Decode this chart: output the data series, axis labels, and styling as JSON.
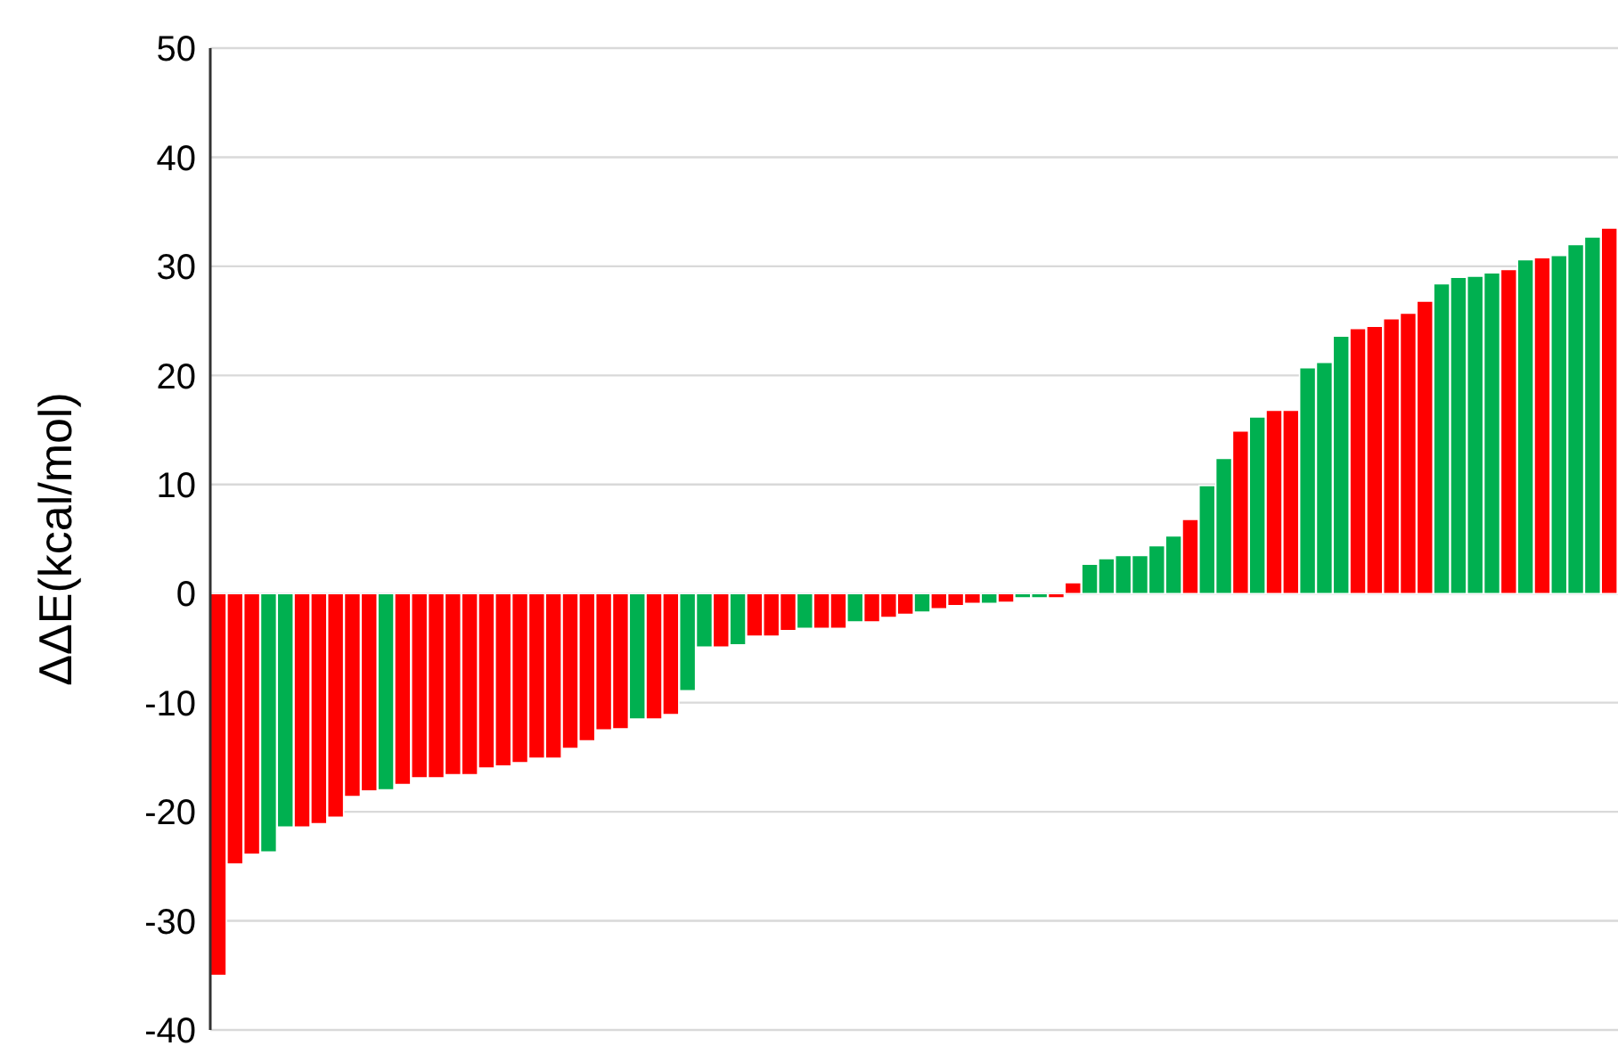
{
  "chart_data": {
    "type": "bar",
    "ylabel": "ΔΔE(kcal/mol)",
    "categories": [
      null,
      null,
      null,
      null,
      null,
      null,
      null,
      null,
      null,
      null,
      null,
      null,
      null,
      null,
      null,
      null,
      null,
      null,
      null,
      null,
      null,
      null,
      null,
      null,
      null,
      null,
      null,
      null,
      null,
      null,
      null,
      null,
      null,
      null,
      null,
      null,
      null,
      null,
      null,
      null,
      null,
      null,
      null,
      null,
      null,
      null,
      null,
      null,
      null,
      null,
      null,
      null,
      null,
      null,
      null,
      null,
      null,
      null,
      null,
      null,
      null,
      null,
      null,
      null,
      null,
      null,
      null,
      null,
      null,
      null,
      null,
      null,
      null,
      null,
      null,
      null,
      null,
      null,
      null,
      null,
      null,
      null,
      null,
      null
    ],
    "values": [
      -35,
      -24.8,
      -23.9,
      -23.7,
      -21.4,
      -21.4,
      -21.1,
      -20.5,
      -18.6,
      -18.1,
      -18.0,
      -17.5,
      -16.9,
      -16.9,
      -16.6,
      -16.6,
      -16.0,
      -15.8,
      -15.5,
      -15.1,
      -15.1,
      -14.2,
      -13.5,
      -12.5,
      -12.4,
      -11.5,
      -11.5,
      -11.1,
      -8.9,
      -4.9,
      -4.9,
      -4.7,
      -3.9,
      -3.9,
      -3.4,
      -3.2,
      -3.2,
      -3.2,
      -2.6,
      -2.6,
      -2.2,
      -1.9,
      -1.7,
      -1.4,
      -1.1,
      -0.9,
      -0.9,
      -0.8,
      -0.4,
      -0.4,
      -0.4,
      1.0,
      2.7,
      3.2,
      3.5,
      3.5,
      4.4,
      5.3,
      6.8,
      9.9,
      12.4,
      14.9,
      16.2,
      16.8,
      16.8,
      20.7,
      21.2,
      23.6,
      24.3,
      24.5,
      25.2,
      25.7,
      26.8,
      28.4,
      29.0,
      29.1,
      29.4,
      29.7,
      30.6,
      30.8,
      31.0,
      32.0,
      32.7,
      33.5
    ],
    "colors": [
      "#ff0000",
      "#ff0000",
      "#ff0000",
      "#00b050",
      "#00b050",
      "#ff0000",
      "#ff0000",
      "#ff0000",
      "#ff0000",
      "#ff0000",
      "#00b050",
      "#ff0000",
      "#ff0000",
      "#ff0000",
      "#ff0000",
      "#ff0000",
      "#ff0000",
      "#ff0000",
      "#ff0000",
      "#ff0000",
      "#ff0000",
      "#ff0000",
      "#ff0000",
      "#ff0000",
      "#ff0000",
      "#00b050",
      "#ff0000",
      "#ff0000",
      "#00b050",
      "#00b050",
      "#ff0000",
      "#00b050",
      "#ff0000",
      "#ff0000",
      "#ff0000",
      "#00b050",
      "#ff0000",
      "#ff0000",
      "#00b050",
      "#ff0000",
      "#ff0000",
      "#ff0000",
      "#00b050",
      "#ff0000",
      "#ff0000",
      "#ff0000",
      "#00b050",
      "#ff0000",
      "#00b050",
      "#00b050",
      "#ff0000",
      "#ff0000",
      "#00b050",
      "#00b050",
      "#00b050",
      "#00b050",
      "#00b050",
      "#00b050",
      "#ff0000",
      "#00b050",
      "#00b050",
      "#ff0000",
      "#00b050",
      "#ff0000",
      "#ff0000",
      "#00b050",
      "#00b050",
      "#00b050",
      "#ff0000",
      "#ff0000",
      "#ff0000",
      "#ff0000",
      "#ff0000",
      "#00b050",
      "#00b050",
      "#00b050",
      "#00b050",
      "#ff0000",
      "#00b050",
      "#ff0000",
      "#00b050",
      "#00b050",
      "#00b050",
      "#ff0000"
    ],
    "ylim": [
      -40,
      50
    ],
    "yticks": [
      -40,
      -30,
      -20,
      -10,
      0,
      10,
      20,
      30,
      40,
      50
    ],
    "grid": "y",
    "tick_labels": "y",
    "legend": false
  }
}
